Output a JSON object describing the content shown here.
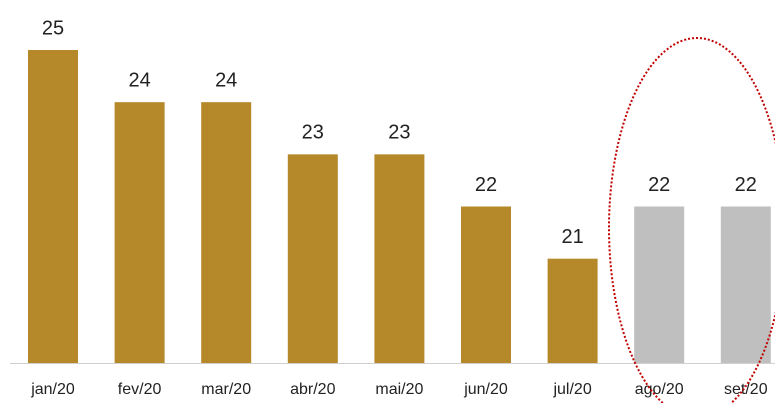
{
  "chart_data": {
    "type": "bar",
    "categories": [
      "jan/20",
      "fev/20",
      "mar/20",
      "abr/20",
      "mai/20",
      "jun/20",
      "jul/20",
      "ago/20",
      "set/20"
    ],
    "values": [
      25,
      24,
      24,
      23,
      23,
      22,
      21,
      22,
      22
    ],
    "colors": [
      "#b5892a",
      "#b5892a",
      "#b5892a",
      "#b5892a",
      "#b5892a",
      "#b5892a",
      "#b5892a",
      "#bfbfbf",
      "#bfbfbf"
    ],
    "ylim": [
      19,
      25
    ]
  }
}
